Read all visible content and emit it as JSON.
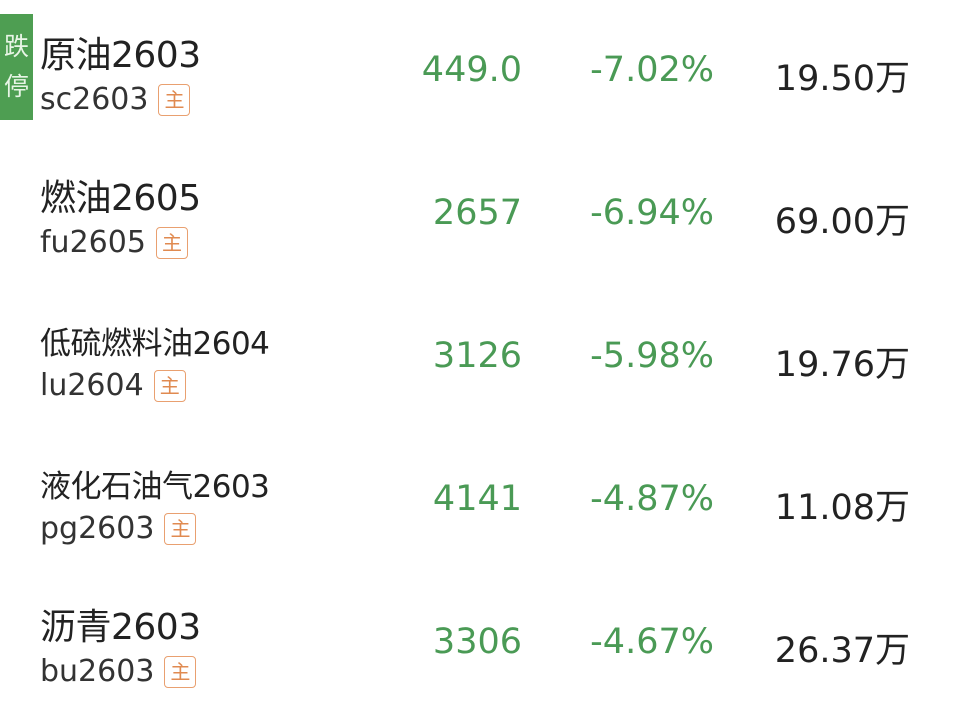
{
  "limit_badge": "跌停",
  "tag_label": "主",
  "colors": {
    "down": "#4a9a55",
    "badge": "#4e9e52",
    "tag": "#e08a50"
  },
  "rows": [
    {
      "name": "原油2603",
      "code": "sc2603",
      "price": "449.0",
      "change": "-7.02%",
      "volume": "19.50万"
    },
    {
      "name": "燃油2605",
      "code": "fu2605",
      "price": "2657",
      "change": "-6.94%",
      "volume": "69.00万"
    },
    {
      "name": "低硫燃料油2604",
      "code": "lu2604",
      "price": "3126",
      "change": "-5.98%",
      "volume": "19.76万"
    },
    {
      "name": "液化石油气2603",
      "code": "pg2603",
      "price": "4141",
      "change": "-4.87%",
      "volume": "11.08万"
    },
    {
      "name": "沥青2603",
      "code": "bu2603",
      "price": "3306",
      "change": "-4.67%",
      "volume": "26.37万"
    }
  ]
}
